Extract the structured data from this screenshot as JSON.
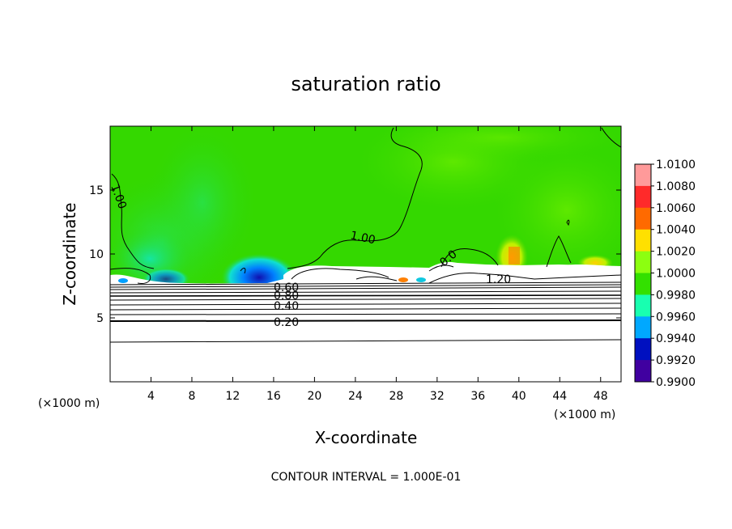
{
  "chart_data": {
    "type": "heatmap",
    "title": "saturation ratio",
    "xlabel": "X-coordinate",
    "ylabel": "Z-coordinate",
    "x_unit_left": "(×1000 m)",
    "x_unit_right": "(×1000 m)",
    "xlim": [
      0,
      50
    ],
    "ylim": [
      0,
      20
    ],
    "x_ticks": [
      4,
      8,
      12,
      16,
      20,
      24,
      28,
      32,
      36,
      40,
      44,
      48
    ],
    "y_ticks": [
      5,
      10,
      15
    ],
    "colorbar": {
      "labels": [
        "1.0100",
        "1.0080",
        "1.0060",
        "1.0040",
        "1.0020",
        "1.0000",
        "0.9980",
        "0.9960",
        "0.9940",
        "0.9920",
        "0.9900"
      ],
      "colors": [
        "#ff9a9a",
        "#ff2a2a",
        "#ff6a00",
        "#ffe000",
        "#8cff10",
        "#33e000",
        "#18ffb0",
        "#00a8ff",
        "#0010c0",
        "#4000a0"
      ]
    },
    "contour_labels": [
      {
        "text": "1.00",
        "x": 0.7,
        "z": 15.5
      },
      {
        "text": "1.00",
        "x": 23.7,
        "z": 11.4
      },
      {
        "text": "1.20",
        "x": 38.3,
        "z": 8.0
      },
      {
        "text": "0.60",
        "x": 17.5,
        "z": 7.1
      },
      {
        "text": "0.80",
        "x": 17.5,
        "z": 6.7
      },
      {
        "text": "0.40",
        "x": 17.5,
        "z": 6.0
      },
      {
        "text": "0.20",
        "x": 17.5,
        "z": 4.8
      },
      {
        "text": "0.0",
        "x": 33.8,
        "z": 9.3
      }
    ],
    "contour_interval_label": "CONTOUR INTERVAL = 1.000E-01"
  }
}
